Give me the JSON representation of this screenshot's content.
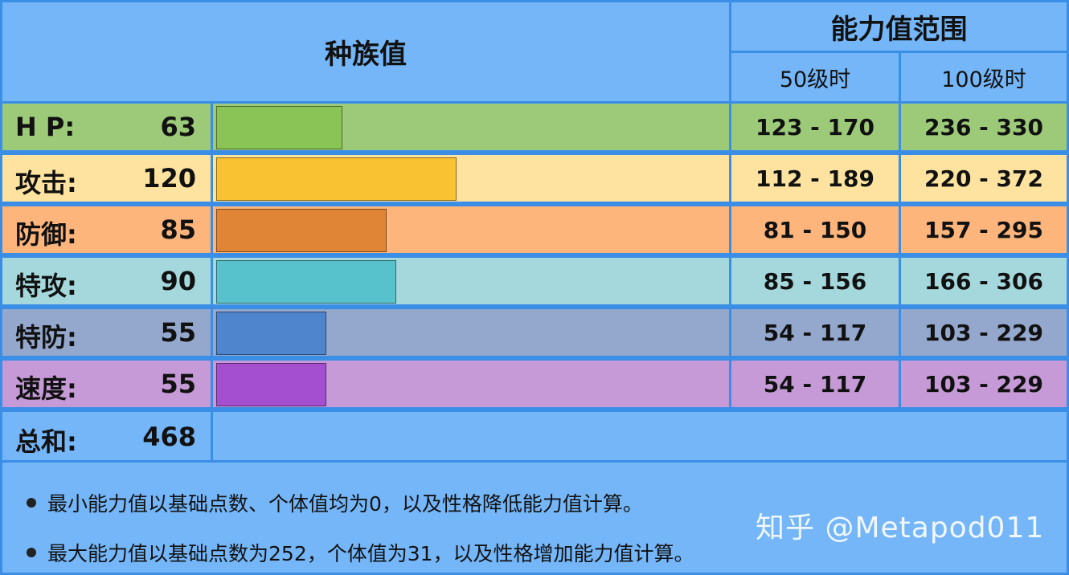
{
  "header": {
    "title": "种族值",
    "range_title": "能力值范围",
    "level50": "50级时",
    "level100": "100级时"
  },
  "stats": [
    {
      "name": "H P:",
      "value": "63",
      "base": 63,
      "range50": "123 - 170",
      "range100": "236 - 330",
      "row_color": "#9cca78",
      "bar_color": "#8bc456"
    },
    {
      "name": "攻击:",
      "value": "120",
      "base": 120,
      "range50": "112 - 189",
      "range100": "220 - 372",
      "row_color": "#fde39f",
      "bar_color": "#f9c232"
    },
    {
      "name": "防御:",
      "value": "85",
      "base": 85,
      "range50": "81 - 150",
      "range100": "157 - 295",
      "row_color": "#fdb57c",
      "bar_color": "#e08535"
    },
    {
      "name": "特攻:",
      "value": "90",
      "base": 90,
      "range50": "85 - 156",
      "range100": "166 - 306",
      "row_color": "#a4d8dc",
      "bar_color": "#57c1cc"
    },
    {
      "name": "特防:",
      "value": "55",
      "base": 55,
      "range50": "54 - 117",
      "range100": "103 - 229",
      "row_color": "#94a7cc",
      "bar_color": "#4f85cd"
    },
    {
      "name": "速度:",
      "value": "55",
      "base": 55,
      "range50": "54 - 117",
      "range100": "103 - 229",
      "row_color": "#c59ad6",
      "bar_color": "#a44fcf"
    }
  ],
  "total": {
    "name": "总和:",
    "value": "468"
  },
  "notes": [
    "最小能力值以基础点数、个体值均为0，以及性格降低能力值计算。",
    "最大能力值以基础点数为252，个体值为31，以及性格增加能力值计算。"
  ],
  "watermark": "知乎 @Metapod011",
  "colors": {
    "border": "#3a8ee6",
    "header_bg": "#74b6f8"
  }
}
